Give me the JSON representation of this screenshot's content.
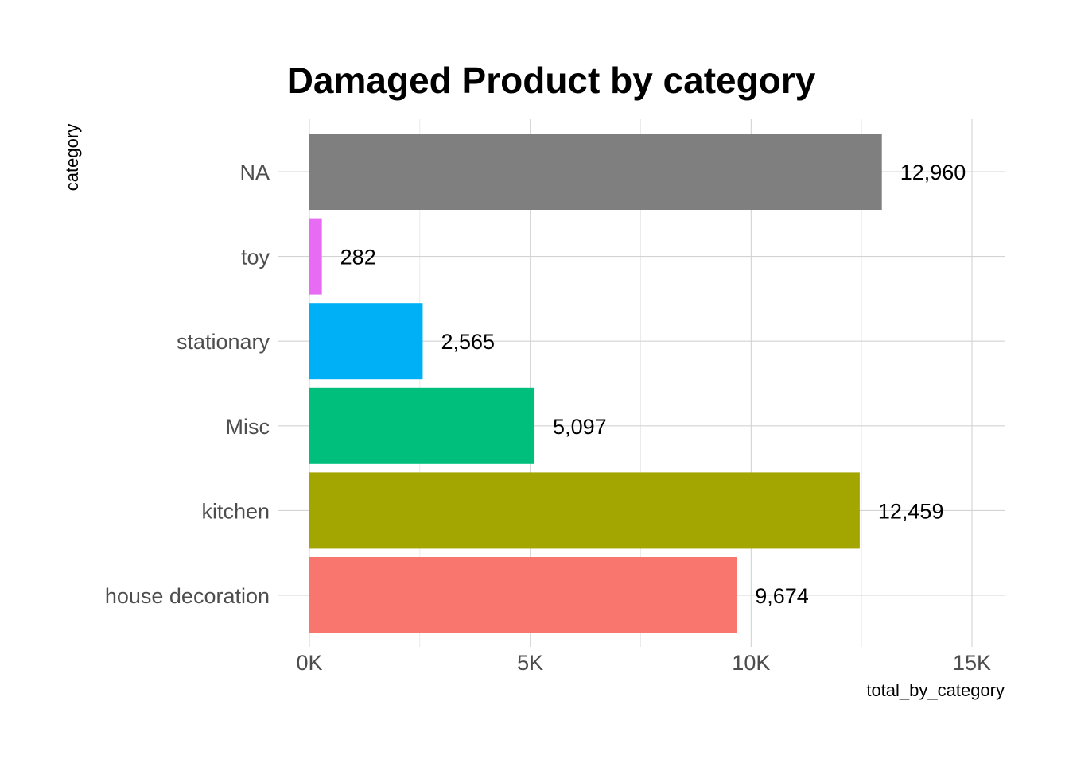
{
  "chart_data": {
    "type": "bar",
    "orientation": "horizontal",
    "title": "Damaged Product by category",
    "xlabel": "total_by_category",
    "ylabel": "category",
    "categories": [
      "house decoration",
      "kitchen",
      "Misc",
      "stationary",
      "toy",
      "NA"
    ],
    "values": [
      9674,
      12459,
      5097,
      2565,
      282,
      12960
    ],
    "value_labels": [
      "9,674",
      "12,459",
      "5,097",
      "2,565",
      "282",
      "12,960"
    ],
    "colors": [
      "#F8766D",
      "#A3A500",
      "#00BF7D",
      "#00B0F6",
      "#E76BF3",
      "#7F7F7F"
    ],
    "xlim": [
      0,
      15000
    ],
    "x_ticks": [
      0,
      5000,
      10000,
      15000
    ],
    "x_tick_labels": [
      "0K",
      "5K",
      "10K",
      "15K"
    ],
    "grid": true,
    "legend": "none"
  }
}
